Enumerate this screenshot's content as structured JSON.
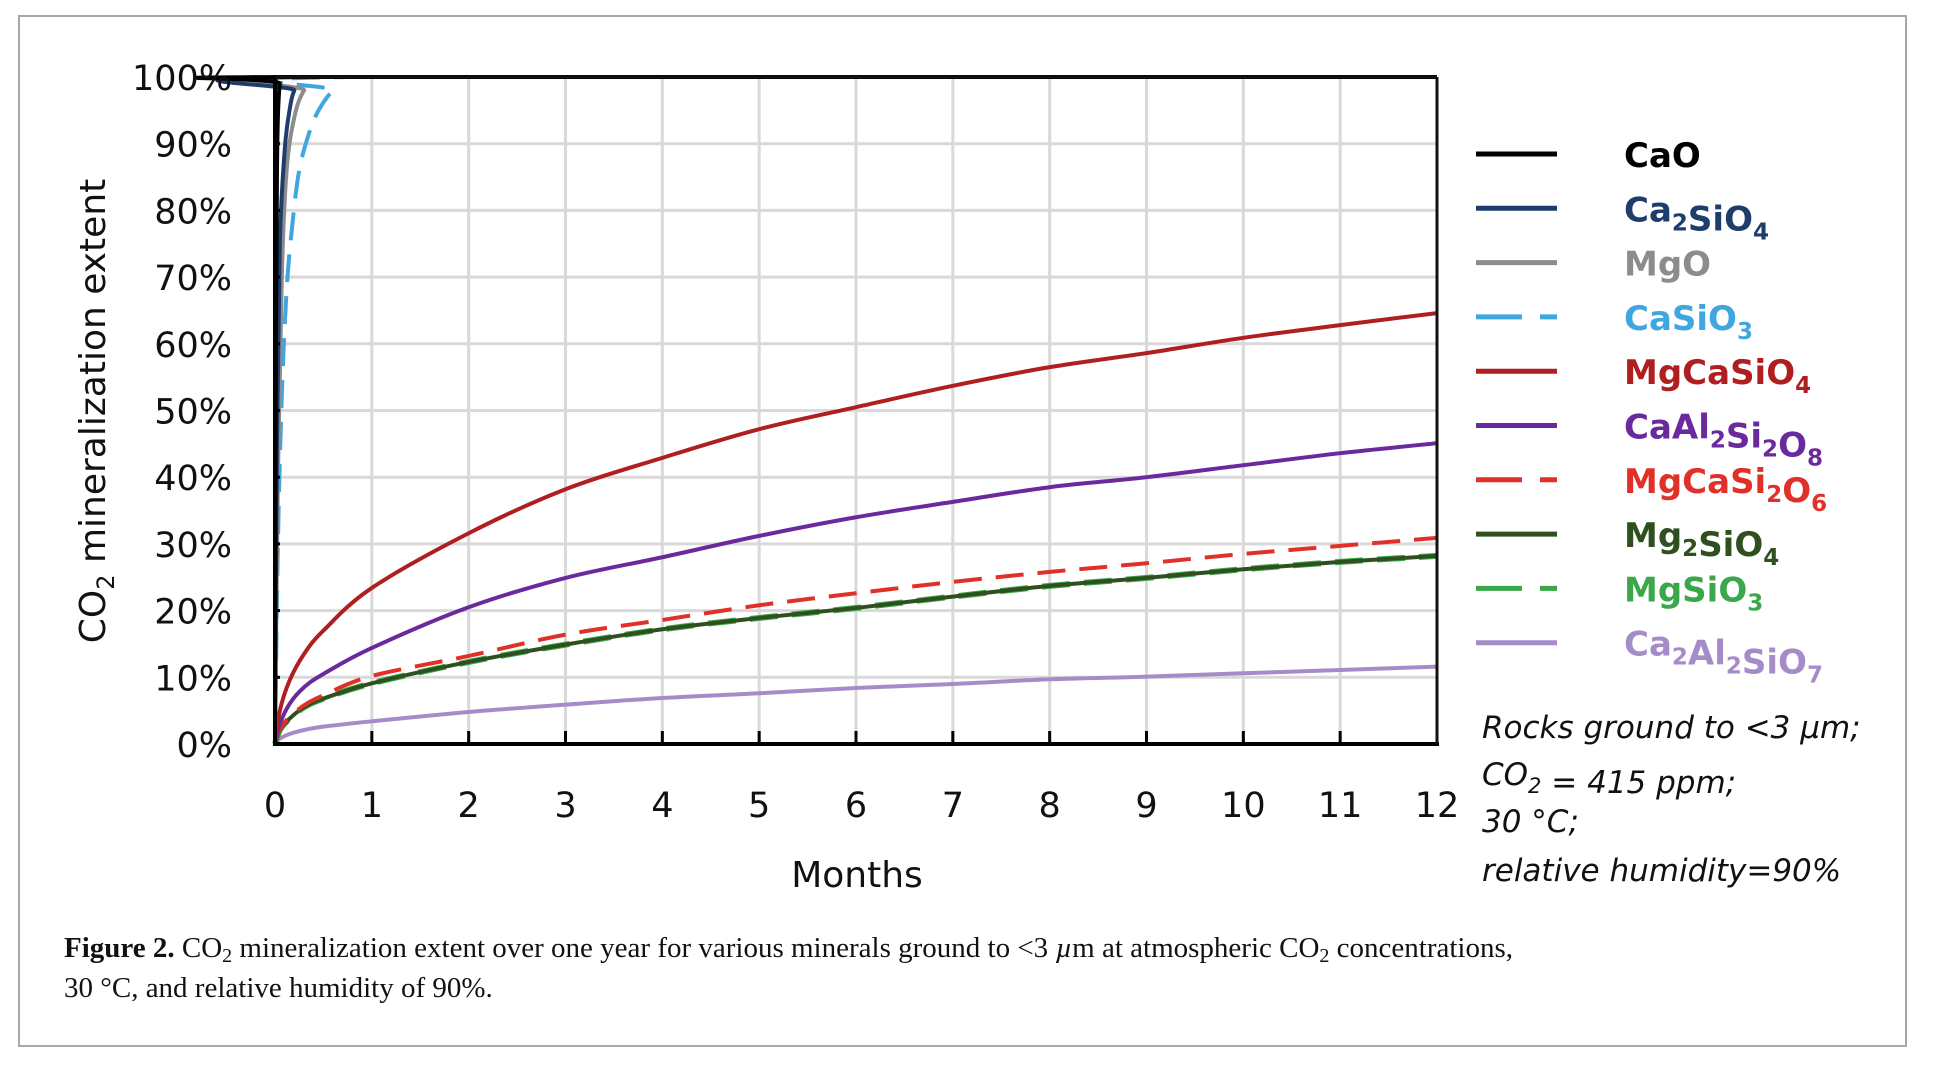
{
  "chart_data": {
    "type": "line",
    "title": "",
    "xlabel": "Months",
    "ylabel": {
      "main": "CO",
      "sub": "2",
      "rest": " mineralization extent"
    },
    "xlim": [
      0,
      12
    ],
    "ylim": [
      0,
      100
    ],
    "x_ticks": [
      "0",
      "1",
      "2",
      "3",
      "4",
      "5",
      "6",
      "7",
      "8",
      "9",
      "10",
      "11",
      "12"
    ],
    "y_ticks": [
      "0%",
      "10%",
      "20%",
      "30%",
      "40%",
      "50%",
      "60%",
      "70%",
      "80%",
      "90%",
      "100%"
    ],
    "grid": true,
    "legend_position": "right",
    "series": [
      {
        "name": "CaO",
        "label_parts": [
          [
            "CaO",
            ""
          ]
        ],
        "color": "#000000",
        "dashed": false,
        "x": [
          0,
          0.01,
          0.02,
          0.03,
          0.05,
          0.08,
          12
        ],
        "y": [
          0,
          60,
          85,
          94,
          99,
          100,
          100
        ]
      },
      {
        "name": "Ca2SiO4",
        "label_parts": [
          [
            "Ca",
            "2"
          ],
          [
            "SiO",
            "4"
          ]
        ],
        "color": "#1f3d6b",
        "dashed": false,
        "x": [
          0,
          0.02,
          0.05,
          0.1,
          0.15,
          0.2,
          0.3,
          12
        ],
        "y": [
          0,
          45,
          75,
          89,
          95,
          98,
          100,
          100
        ]
      },
      {
        "name": "MgO",
        "label_parts": [
          [
            "MgO",
            ""
          ]
        ],
        "color": "#8c8c8c",
        "dashed": false,
        "x": [
          0,
          0.03,
          0.07,
          0.12,
          0.2,
          0.3,
          0.45,
          12
        ],
        "y": [
          0,
          40,
          70,
          86,
          94,
          98,
          100,
          100
        ]
      },
      {
        "name": "CaSiO3",
        "label_parts": [
          [
            "CaSiO",
            "3"
          ]
        ],
        "color": "#3fa6e0",
        "dashed": true,
        "x": [
          0,
          0.03,
          0.07,
          0.12,
          0.18,
          0.25,
          0.35,
          0.45,
          0.6,
          0.8,
          12
        ],
        "y": [
          0,
          30,
          52,
          68,
          78,
          86,
          91.5,
          95,
          98,
          100,
          100
        ]
      },
      {
        "name": "MgCaSiO4",
        "label_parts": [
          [
            "MgCaSiO",
            "4"
          ]
        ],
        "color": "#b01f1f",
        "dashed": false,
        "x": [
          0,
          0.05,
          0.15,
          0.3,
          0.5,
          1,
          2,
          3,
          4,
          5,
          6,
          7,
          8,
          9,
          10,
          11,
          12
        ],
        "y": [
          0,
          5,
          9.5,
          13.5,
          17,
          23.4,
          31.6,
          38.2,
          42.9,
          47.2,
          50.5,
          53.7,
          56.5,
          58.6,
          60.9,
          62.8,
          64.6
        ]
      },
      {
        "name": "CaAl2Si2O8",
        "label_parts": [
          [
            "CaAl",
            "2"
          ],
          [
            "Si",
            "2"
          ],
          [
            "O",
            "8"
          ]
        ],
        "color": "#6a2a9e",
        "dashed": false,
        "x": [
          0,
          0.05,
          0.15,
          0.3,
          0.5,
          1,
          2,
          3,
          4,
          5,
          6,
          7,
          8,
          9,
          10,
          11,
          12
        ],
        "y": [
          0,
          3,
          6,
          8.5,
          10.5,
          14.4,
          20.5,
          24.9,
          28,
          31.2,
          34,
          36.3,
          38.5,
          40,
          41.8,
          43.6,
          45.1
        ]
      },
      {
        "name": "MgCaSi2O6",
        "label_parts": [
          [
            "MgCaSi",
            "2"
          ],
          [
            "O",
            "6"
          ]
        ],
        "color": "#e03128",
        "dashed": true,
        "x": [
          0,
          0.05,
          0.15,
          0.3,
          0.5,
          1,
          2,
          3,
          4,
          5,
          6,
          7,
          8,
          9,
          10,
          11,
          12
        ],
        "y": [
          0,
          2.2,
          4,
          5.8,
          7.3,
          10.2,
          13.2,
          16.4,
          18.6,
          20.8,
          22.6,
          24.3,
          25.8,
          27.1,
          28.5,
          29.7,
          30.9
        ]
      },
      {
        "name": "Mg2SiO4",
        "label_parts": [
          [
            "Mg",
            "2"
          ],
          [
            "SiO",
            "4"
          ]
        ],
        "color": "#2f4f1f",
        "dashed": false,
        "x": [
          0,
          0.05,
          0.15,
          0.3,
          0.5,
          1,
          2,
          3,
          4,
          5,
          6,
          7,
          8,
          9,
          10,
          11,
          12
        ],
        "y": [
          0,
          2.1,
          3.8,
          5.5,
          6.8,
          9.1,
          12.3,
          14.9,
          17.2,
          18.9,
          20.4,
          22.1,
          23.7,
          24.9,
          26.2,
          27.3,
          28.2
        ]
      },
      {
        "name": "MgSiO3",
        "label_parts": [
          [
            "MgSiO",
            "3"
          ]
        ],
        "color": "#3aa84a",
        "dashed": true,
        "x": [
          0,
          0.05,
          0.15,
          0.3,
          0.5,
          1,
          2,
          3,
          4,
          5,
          6,
          7,
          8,
          9,
          10,
          11,
          12
        ],
        "y": [
          0,
          2.1,
          3.8,
          5.5,
          6.8,
          9.1,
          12.3,
          14.9,
          17.2,
          18.9,
          20.4,
          22.1,
          23.7,
          24.9,
          26.2,
          27.3,
          28.2
        ]
      },
      {
        "name": "Ca2Al2SiO7",
        "label_parts": [
          [
            "Ca",
            "2"
          ],
          [
            "Al",
            "2"
          ],
          [
            "SiO",
            "7"
          ]
        ],
        "color": "#a58cc9",
        "dashed": false,
        "x": [
          0,
          0.05,
          0.15,
          0.3,
          0.5,
          1,
          2,
          3,
          4,
          5,
          6,
          7,
          8,
          9,
          10,
          11,
          12
        ],
        "y": [
          0,
          0.8,
          1.5,
          2.1,
          2.6,
          3.4,
          4.8,
          5.9,
          6.9,
          7.6,
          8.4,
          9.0,
          9.7,
          10.1,
          10.6,
          11.1,
          11.6
        ]
      }
    ],
    "annotation": [
      [
        [
          "Rocks ground to <3 µm;",
          ""
        ]
      ],
      [
        [
          "CO",
          "2"
        ],
        [
          " = 415 ppm;",
          ""
        ]
      ],
      [
        [
          "30 °C;",
          ""
        ]
      ],
      [
        [
          "relative humidity=90%",
          ""
        ]
      ]
    ]
  },
  "caption": {
    "label": "Figure 2.",
    "text_parts": [
      " CO",
      "2",
      " mineralization extent over one year for various minerals ground to <3 ",
      "µ",
      "m at atmospheric CO",
      "2",
      " concentrations,"
    ],
    "line2": "30 °C, and relative humidity of 90%."
  }
}
